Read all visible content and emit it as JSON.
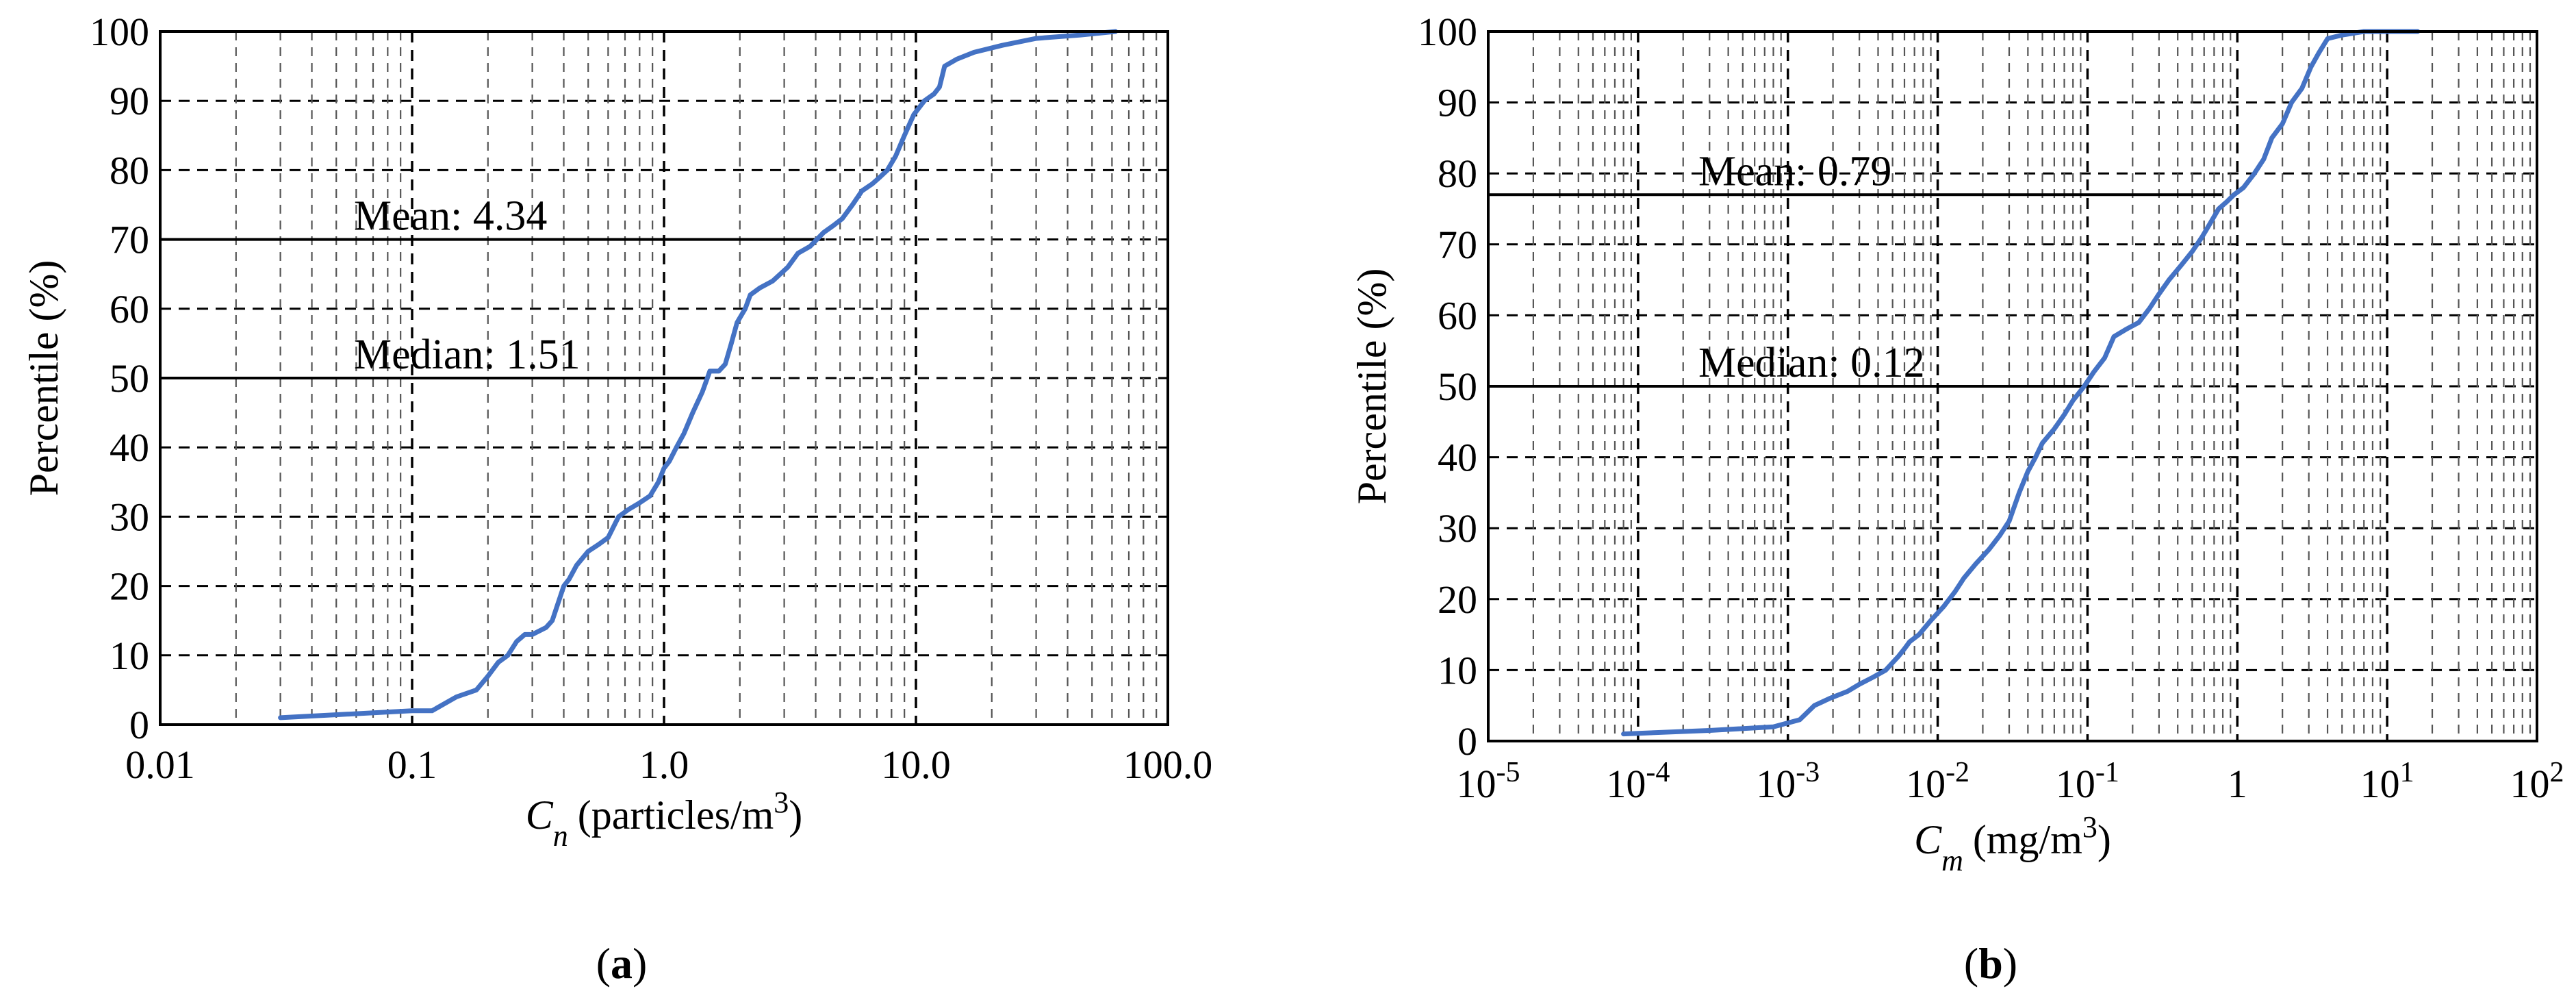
{
  "figure": {
    "panels": [
      {
        "label_open": "(",
        "label_letter": "a",
        "label_close": ")"
      },
      {
        "label_open": "(",
        "label_letter": "b",
        "label_close": ")"
      }
    ]
  },
  "colors": {
    "line": "#4472C4",
    "grid": "#000000",
    "background": "#ffffff"
  },
  "chart_data": [
    {
      "type": "line",
      "panel": "a",
      "x_scale": "log",
      "xlim": [
        0.01,
        100.0
      ],
      "ylim": [
        0,
        100
      ],
      "x_tick_labels": [
        "0.01",
        "0.1",
        "1.0",
        "10.0",
        "100.0"
      ],
      "y_tick_labels": [
        "0",
        "10",
        "20",
        "30",
        "40",
        "50",
        "60",
        "70",
        "80",
        "90",
        "100"
      ],
      "xlabel_symbol": "C",
      "xlabel_subscript": "n",
      "xlabel_unit": "(particles/m",
      "xlabel_unit_sup": "3",
      "xlabel_unit_close": ")",
      "ylabel": "Percentile (%)",
      "grid": true,
      "series": [
        {
          "x": [
            0.03,
            0.1,
            0.12,
            0.15,
            0.18,
            0.2,
            0.22,
            0.24,
            0.26,
            0.28,
            0.3,
            0.34,
            0.36,
            0.4,
            0.42,
            0.45,
            0.5,
            0.55,
            0.6,
            0.66,
            0.72,
            0.8,
            0.88,
            0.95,
            1.0,
            1.05,
            1.12,
            1.2,
            1.3,
            1.42,
            1.52,
            1.65,
            1.75,
            1.85,
            1.95,
            2.1,
            2.2,
            2.4,
            2.7,
            3.1,
            3.4,
            3.8,
            4.3,
            4.7,
            5.1,
            5.6,
            6.1,
            6.7,
            7.2,
            7.7,
            8.3,
            9.0,
            9.8,
            10.8,
            11.8,
            12.4,
            13.0,
            14.5,
            17.0,
            22.0,
            30.0,
            45.0,
            62.0
          ],
          "y": [
            1,
            2,
            2,
            4,
            5,
            7,
            9,
            10,
            12,
            13,
            13,
            14,
            15,
            20,
            21,
            23,
            25,
            26,
            27,
            30,
            31,
            32,
            33,
            35,
            37,
            38,
            40,
            42,
            45,
            48,
            51,
            51,
            52,
            55,
            58,
            60,
            62,
            63,
            64,
            66,
            68,
            69,
            71,
            72,
            73,
            75,
            77,
            78,
            79,
            80,
            82,
            85,
            88,
            90,
            91,
            92,
            95,
            96,
            97,
            98,
            99,
            99.5,
            100
          ]
        }
      ],
      "annotations": [
        {
          "text": "Mean: 4.34",
          "x": 4.34,
          "y": 70
        },
        {
          "text": "Median: 1.51",
          "x": 1.51,
          "y": 50
        }
      ]
    },
    {
      "type": "line",
      "panel": "b",
      "x_scale": "log",
      "xlim": [
        1e-05,
        100
      ],
      "ylim": [
        0,
        100
      ],
      "x_tick_labels": [
        {
          "base": "10",
          "exp": "-5"
        },
        {
          "base": "10",
          "exp": "-4"
        },
        {
          "base": "10",
          "exp": "-3"
        },
        {
          "base": "10",
          "exp": "-2"
        },
        {
          "base": "10",
          "exp": "-1"
        },
        {
          "base": "1",
          "exp": ""
        },
        {
          "base": "10",
          "exp": "1"
        },
        {
          "base": "10",
          "exp": "2"
        }
      ],
      "y_tick_labels": [
        "0",
        "10",
        "20",
        "30",
        "40",
        "50",
        "60",
        "70",
        "80",
        "90",
        "100"
      ],
      "xlabel_symbol": "C",
      "xlabel_subscript": "m",
      "xlabel_unit": "(mg/m",
      "xlabel_unit_sup": "3",
      "xlabel_unit_close": ")",
      "ylabel": "Percentile (%)",
      "grid": true,
      "series": [
        {
          "x": [
            8e-05,
            0.0003,
            0.0008,
            0.0012,
            0.0015,
            0.0019,
            0.0025,
            0.003,
            0.0037,
            0.0045,
            0.0055,
            0.006,
            0.0065,
            0.0075,
            0.009,
            0.011,
            0.013,
            0.015,
            0.018,
            0.022,
            0.026,
            0.03,
            0.035,
            0.04,
            0.045,
            0.05,
            0.06,
            0.07,
            0.08,
            0.095,
            0.11,
            0.13,
            0.15,
            0.18,
            0.22,
            0.26,
            0.3,
            0.35,
            0.42,
            0.5,
            0.58,
            0.66,
            0.75,
            0.85,
            0.95,
            1.1,
            1.3,
            1.5,
            1.7,
            2.0,
            2.3,
            2.7,
            3.1,
            3.5,
            4.0,
            5.0,
            7.0,
            10.0,
            16.0
          ],
          "y": [
            1,
            1.5,
            2,
            3,
            5,
            6,
            7,
            8,
            9,
            10,
            12,
            13,
            14,
            15,
            17,
            19,
            21,
            23,
            25,
            27,
            29,
            31,
            35,
            38,
            40,
            42,
            44,
            46,
            48,
            50,
            52,
            54,
            57,
            58,
            59,
            61,
            63,
            65,
            67,
            69,
            71,
            73,
            75,
            76,
            77,
            78,
            80,
            82,
            85,
            87,
            90,
            92,
            95,
            97,
            99,
            99.5,
            100,
            100,
            100
          ]
        }
      ],
      "annotations": [
        {
          "text": "Mean: 0.79",
          "x": 0.79,
          "y": 77
        },
        {
          "text": "Median: 0.12",
          "x": 0.12,
          "y": 50
        }
      ]
    }
  ]
}
